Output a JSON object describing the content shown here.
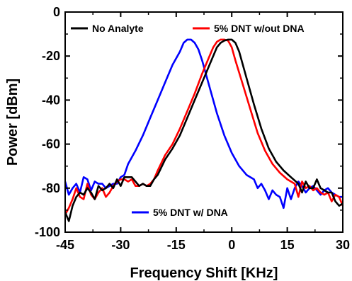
{
  "chart_data": {
    "type": "line",
    "xlabel": "Frequency Shift [KHz]",
    "ylabel": "Power [dBm]",
    "xlim": [
      -45,
      30
    ],
    "ylim": [
      -100,
      0
    ],
    "xticks": [
      -45,
      -30,
      -15,
      0,
      15,
      30
    ],
    "yticks": [
      0,
      -20,
      -40,
      -60,
      -80,
      -100
    ],
    "xtick_labels": [
      "-45",
      "-30",
      "-15",
      "0",
      "15",
      "30"
    ],
    "ytick_labels": [
      "0",
      "-20",
      "-40",
      "-60",
      "-80",
      "-100"
    ],
    "grid": false,
    "legend": [
      {
        "name": "No Analyte",
        "placement": "top-left"
      },
      {
        "name": "5% DNT w/out DNA",
        "placement": "top-right"
      },
      {
        "name": "5% DNT w/ DNA",
        "placement": "bottom-center"
      }
    ],
    "series": [
      {
        "name": "No Analyte",
        "color": "#000000",
        "x": [
          -45,
          -44,
          -43,
          -42,
          -41,
          -40,
          -39,
          -38,
          -37,
          -36,
          -35,
          -34,
          -33,
          -32,
          -31,
          -30,
          -29,
          -28,
          -27,
          -26,
          -25,
          -24,
          -23,
          -22,
          -21,
          -20,
          -18,
          -16,
          -14,
          -12,
          -10,
          -8,
          -6,
          -4,
          -3,
          -2,
          -1,
          0,
          1,
          2,
          4,
          6,
          8,
          10,
          12,
          14,
          16,
          18,
          19,
          20,
          21,
          22,
          23,
          24,
          25,
          26,
          27,
          28,
          29,
          30
        ],
        "y": [
          -91,
          -95,
          -88,
          -84,
          -82,
          -83,
          -80,
          -82,
          -85,
          -79,
          -81,
          -80,
          -78,
          -80,
          -76,
          -79,
          -75,
          -75,
          -75,
          -77,
          -79,
          -78,
          -79,
          -79,
          -76,
          -74,
          -67,
          -62,
          -56,
          -48,
          -40,
          -32,
          -24,
          -16,
          -14,
          -13,
          -12.5,
          -12.5,
          -14,
          -18,
          -30,
          -42,
          -53,
          -62,
          -68,
          -72,
          -75,
          -78,
          -82,
          -77,
          -80,
          -80,
          -76,
          -80,
          -81,
          -82,
          -82,
          -86,
          -88,
          -87
        ]
      },
      {
        "name": "5% DNT w/out DNA",
        "color": "#ff0000",
        "x": [
          -45,
          -44,
          -43,
          -42,
          -41,
          -40,
          -39,
          -38,
          -37,
          -36,
          -35,
          -34,
          -33,
          -32,
          -31,
          -30,
          -29,
          -28,
          -27,
          -26,
          -25,
          -24,
          -23,
          -22,
          -21,
          -20,
          -18,
          -16,
          -14,
          -12,
          -10,
          -8,
          -6,
          -5,
          -4,
          -3,
          -2,
          -1,
          0,
          1,
          3,
          5,
          7,
          9,
          11,
          13,
          15,
          17,
          18,
          19,
          20,
          21,
          22,
          23,
          24,
          25,
          26,
          27,
          28,
          29,
          30
        ],
        "y": [
          -92,
          -89,
          -85,
          -80,
          -84,
          -85,
          -78,
          -83,
          -85,
          -82,
          -80,
          -84,
          -82,
          -79,
          -77,
          -76,
          -76,
          -77,
          -76,
          -79,
          -79,
          -78,
          -79,
          -78,
          -76,
          -72,
          -65,
          -60,
          -53,
          -45,
          -37,
          -28,
          -20,
          -16,
          -13.5,
          -12.5,
          -12.5,
          -13,
          -16,
          -22,
          -33,
          -44,
          -55,
          -63,
          -69,
          -73,
          -76,
          -78,
          -84,
          -77,
          -80,
          -79,
          -81,
          -80,
          -82,
          -83,
          -82,
          -86,
          -83,
          -84,
          -88
        ]
      },
      {
        "name": "5% DNT w/ DNA",
        "color": "#0000ff",
        "x": [
          -45,
          -44,
          -43,
          -42,
          -41,
          -40,
          -39,
          -38,
          -37,
          -36,
          -35,
          -34,
          -33,
          -32,
          -31,
          -30,
          -29,
          -28,
          -26,
          -24,
          -22,
          -20,
          -18,
          -16,
          -14,
          -13,
          -12,
          -11,
          -10,
          -9,
          -8,
          -6,
          -4,
          -2,
          0,
          2,
          4,
          6,
          7,
          8,
          9,
          10,
          11,
          12,
          13,
          14,
          15,
          16,
          17,
          18,
          19,
          20,
          21,
          22,
          23,
          24,
          25,
          26,
          27,
          28,
          29,
          30
        ],
        "y": [
          -77,
          -83,
          -80,
          -78,
          -82,
          -75,
          -76,
          -81,
          -77,
          -78,
          -78,
          -80,
          -79,
          -78,
          -78,
          -75,
          -74,
          -69,
          -63,
          -56,
          -48,
          -40,
          -32,
          -24,
          -18,
          -14,
          -12.5,
          -12.5,
          -14,
          -17,
          -22,
          -34,
          -46,
          -56,
          -64,
          -70,
          -74,
          -76,
          -80,
          -78,
          -81,
          -85,
          -81,
          -83,
          -84,
          -89,
          -80,
          -85,
          -80,
          -77,
          -79,
          -82,
          -80,
          -79,
          -81,
          -83,
          -81,
          -80,
          -82,
          -83,
          -84,
          -84
        ]
      }
    ]
  }
}
